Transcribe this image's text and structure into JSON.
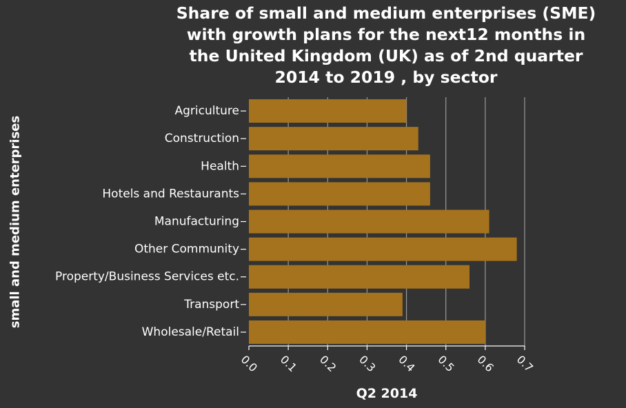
{
  "chart_data": {
    "type": "bar",
    "orientation": "horizontal",
    "title_lines": [
      "Share of small and medium enterprises (SME)",
      "with growth plans for the next12 months in",
      "the United Kingdom (UK) as of 2nd quarter",
      "2014 to 2019 , by sector"
    ],
    "xlabel": "Q2 2014",
    "ylabel": "small and medium enterprises",
    "categories": [
      "Agriculture",
      "Construction",
      "Health",
      "Hotels and Restaurants",
      "Manufacturing",
      "Other Community",
      "Property/Business Services etc.",
      "Transport",
      "Wholesale/Retail"
    ],
    "values": [
      0.4,
      0.43,
      0.46,
      0.46,
      0.61,
      0.68,
      0.56,
      0.39,
      0.6
    ],
    "xlim": [
      0,
      0.7
    ],
    "xticks": [
      "0.0",
      "0.1",
      "0.2",
      "0.3",
      "0.4",
      "0.5",
      "0.6",
      "0.7"
    ],
    "grid": "vertical",
    "bar_color": "#a5731d",
    "background_color": "#333333",
    "grid_color": "#9a9a9a",
    "text_color": "#ffffff"
  }
}
